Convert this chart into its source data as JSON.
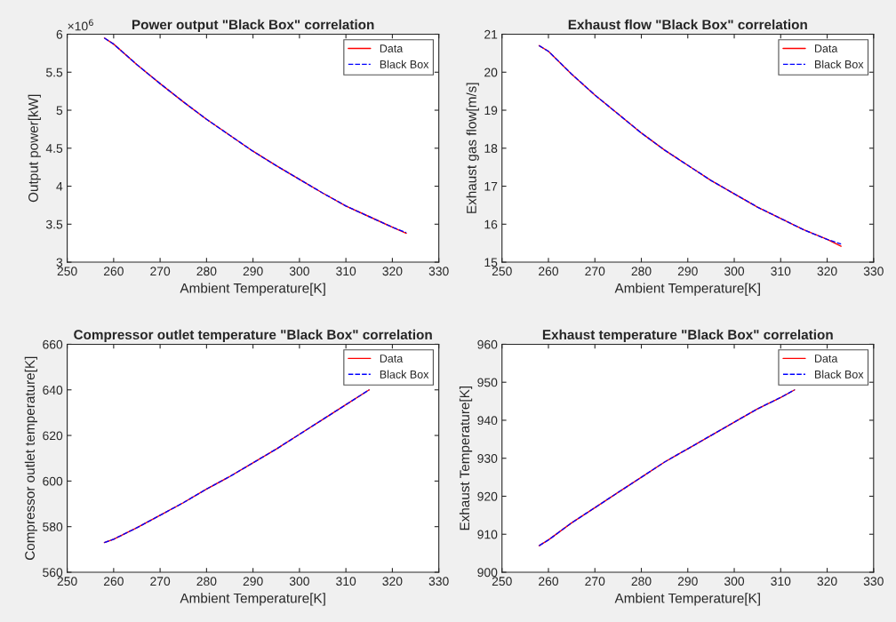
{
  "chart_data": [
    {
      "type": "line",
      "title": "Power output \"Black Box\" correlation",
      "xlabel": "Ambient Temperature[K]",
      "ylabel": "Output power[kW]",
      "annotations": [
        "×10$^{6}$"
      ],
      "x": [
        258,
        260,
        265,
        270,
        275,
        280,
        285,
        290,
        295,
        300,
        305,
        310,
        315,
        320,
        323
      ],
      "series": [
        {
          "name": "Data",
          "color": "#ff0000",
          "line_style": "solid",
          "values": [
            5.95,
            5.87,
            5.6,
            5.35,
            5.11,
            4.88,
            4.67,
            4.46,
            4.27,
            4.09,
            3.91,
            3.74,
            3.6,
            3.46,
            3.38
          ]
        },
        {
          "name": "Black Box",
          "color": "#0000ff",
          "line_style": "dashed",
          "values": [
            5.95,
            5.87,
            5.6,
            5.35,
            5.11,
            4.88,
            4.67,
            4.46,
            4.27,
            4.09,
            3.91,
            3.74,
            3.6,
            3.46,
            3.39
          ]
        }
      ],
      "xlim": [
        250,
        330
      ],
      "xticks": [
        250,
        260,
        270,
        280,
        290,
        300,
        310,
        320,
        330
      ],
      "ylim": [
        3,
        6
      ],
      "yticks": [
        3,
        3.5,
        4,
        4.5,
        5,
        5.5,
        6
      ],
      "grid": false,
      "legend": "top right"
    },
    {
      "type": "line",
      "title": "Exhaust flow \"Black Box\" correlation",
      "xlabel": "Ambient Temperature[K]",
      "ylabel": "Exhaust gas flow[m/s]",
      "x": [
        258,
        260,
        265,
        270,
        275,
        280,
        285,
        290,
        295,
        300,
        305,
        310,
        315,
        320,
        323
      ],
      "series": [
        {
          "name": "Data",
          "color": "#ff0000",
          "line_style": "solid",
          "values": [
            20.7,
            20.55,
            19.95,
            19.4,
            18.9,
            18.4,
            17.95,
            17.55,
            17.15,
            16.8,
            16.45,
            16.15,
            15.85,
            15.6,
            15.42
          ]
        },
        {
          "name": "Black Box",
          "color": "#0000ff",
          "line_style": "dashed",
          "values": [
            20.7,
            20.55,
            19.95,
            19.4,
            18.9,
            18.4,
            17.95,
            17.55,
            17.15,
            16.8,
            16.45,
            16.15,
            15.85,
            15.6,
            15.48
          ]
        }
      ],
      "xlim": [
        250,
        330
      ],
      "xticks": [
        250,
        260,
        270,
        280,
        290,
        300,
        310,
        320,
        330
      ],
      "ylim": [
        15,
        21
      ],
      "yticks": [
        15,
        16,
        17,
        18,
        19,
        20,
        21
      ],
      "grid": false,
      "legend": "top right"
    },
    {
      "type": "line",
      "title": "Compressor outlet temperature \"Black Box\" correlation",
      "xlabel": "Ambient Temperature[K]",
      "ylabel": "Compressor outlet temperature[K]",
      "x": [
        258,
        260,
        265,
        270,
        275,
        280,
        285,
        290,
        295,
        300,
        305,
        310,
        315
      ],
      "series": [
        {
          "name": "Data",
          "color": "#ff0000",
          "line_style": "solid",
          "values": [
            573,
            574.5,
            579.5,
            585,
            590.5,
            596.5,
            602,
            608,
            614,
            620.5,
            627,
            633.5,
            640
          ]
        },
        {
          "name": "Black Box",
          "color": "#0000ff",
          "line_style": "dashed",
          "values": [
            573,
            574.5,
            579.5,
            585,
            590.5,
            596.5,
            602,
            608,
            614,
            620.5,
            627,
            633.5,
            640
          ]
        }
      ],
      "xlim": [
        250,
        330
      ],
      "xticks": [
        250,
        260,
        270,
        280,
        290,
        300,
        310,
        320,
        330
      ],
      "ylim": [
        560,
        660
      ],
      "yticks": [
        560,
        580,
        600,
        620,
        640,
        660
      ],
      "grid": false,
      "legend": "top right"
    },
    {
      "type": "line",
      "title": "Exhaust temperature \"Black Box\" correlation",
      "xlabel": "Ambient Temperature[K]",
      "ylabel": "Exhaust Temperature[K]",
      "x": [
        258,
        260,
        265,
        270,
        275,
        280,
        285,
        290,
        295,
        300,
        305,
        310,
        313
      ],
      "series": [
        {
          "name": "Data",
          "color": "#ff0000",
          "line_style": "solid",
          "values": [
            907,
            908.5,
            913,
            917,
            921,
            925,
            929,
            932.5,
            936,
            939.5,
            943,
            946,
            948
          ]
        },
        {
          "name": "Black Box",
          "color": "#0000ff",
          "line_style": "dashed",
          "values": [
            907,
            908.5,
            913,
            917,
            921,
            925,
            929,
            932.5,
            936,
            939.5,
            943,
            946,
            948
          ]
        }
      ],
      "xlim": [
        250,
        330
      ],
      "xticks": [
        250,
        260,
        270,
        280,
        290,
        300,
        310,
        320,
        330
      ],
      "ylim": [
        900,
        960
      ],
      "yticks": [
        900,
        910,
        920,
        930,
        940,
        950,
        960
      ],
      "grid": false,
      "legend": "top right"
    }
  ]
}
